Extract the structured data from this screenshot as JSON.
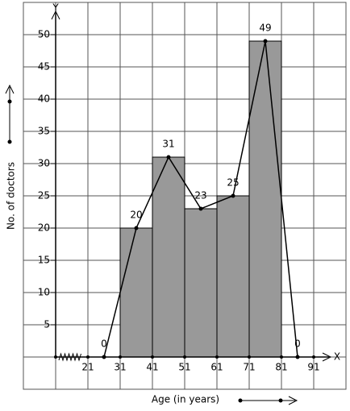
{
  "chart_data": {
    "type": "histogram",
    "x_label": "Age (in years)",
    "y_label": "No. of doctors",
    "x_axis_name": "X",
    "y_axis_name": "Y",
    "bins": [
      31,
      41,
      51,
      61,
      71,
      81
    ],
    "counts": [
      20,
      31,
      23,
      25,
      49
    ],
    "color": "#999999",
    "polygon": {
      "x": [
        26,
        36,
        46,
        56,
        66,
        76,
        86
      ],
      "values": [
        0,
        20,
        31,
        23,
        25,
        49,
        0
      ],
      "color": "#000000"
    },
    "xlim": [
      1,
      101
    ],
    "ylim": [
      -5,
      55
    ],
    "xticks": [
      21,
      31,
      41,
      51,
      61,
      71,
      81,
      91
    ],
    "yticks": [
      5,
      10,
      15,
      20,
      25,
      30,
      35,
      40,
      45,
      50
    ],
    "grid": true
  }
}
